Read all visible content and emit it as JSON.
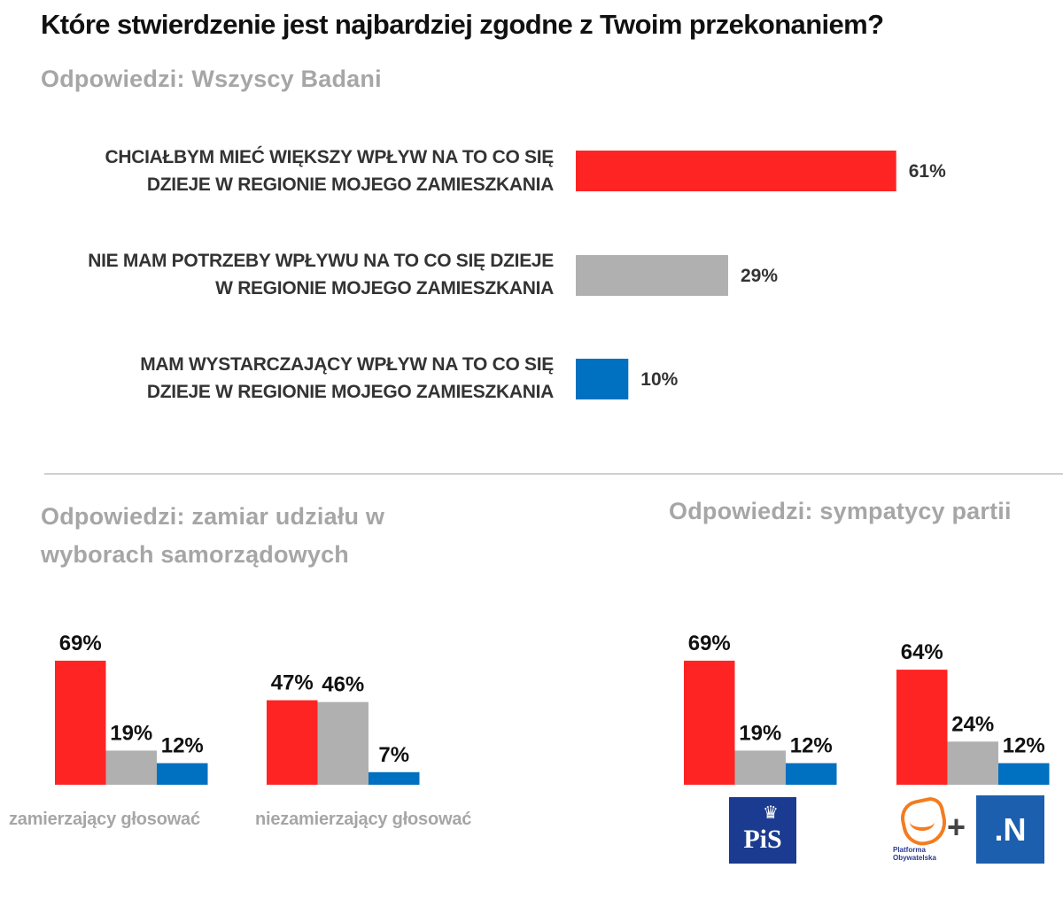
{
  "title": "Które stwierdzenie jest najbardziej zgodne z Twoim przekonaniem?",
  "subtitles": {
    "main": "Odpowiedzi: Wszyscy Badani",
    "left": "Odpowiedzi: zamiar udziału w wyborach samorządowych",
    "right": "Odpowiedzi: sympatycy partii"
  },
  "colors": {
    "red": "#ff2424",
    "grey": "#b0b0b0",
    "blue": "#0070c0"
  },
  "logos": {
    "pis": {
      "icon": "pis-party-logo",
      "text": "PiS",
      "crown": "♛"
    },
    "po": {
      "icon": "platforma-obywatelska-logo",
      "text": "Platforma Obywatelska"
    },
    "plus": "+",
    "n": {
      "icon": "nowoczesna-logo",
      "text": ".N"
    }
  },
  "chart_data": [
    {
      "type": "bar",
      "orientation": "horizontal",
      "title": "Odpowiedzi: Wszyscy Badani",
      "categories": [
        "CHCIAŁBYM MIEĆ WIĘKSZY WPŁYW NA TO CO SIĘ DZIEJE W REGIONIE MOJEGO ZAMIESZKANIA",
        "NIE MAM POTRZEBY WPŁYWU NA TO CO SIĘ DZIEJE W REGIONIE MOJEGO ZAMIESZKANIA",
        "MAM WYSTARCZAJĄCY WPŁYW NA TO CO SIĘ DZIEJE W REGIONIE MOJEGO ZAMIESZKANIA"
      ],
      "label_lines": [
        [
          "CHCIAŁBYM MIEĆ WIĘKSZY WPŁYW NA TO CO SIĘ",
          "DZIEJE W REGIONIE MOJEGO ZAMIESZKANIA"
        ],
        [
          "NIE MAM POTRZEBY WPŁYWU NA TO CO SIĘ DZIEJE",
          "W REGIONIE MOJEGO ZAMIESZKANIA"
        ],
        [
          "MAM WYSTARCZAJĄCY WPŁYW NA TO CO SIĘ",
          "DZIEJE W REGIONIE MOJEGO ZAMIESZKANIA"
        ]
      ],
      "values": [
        61,
        29,
        10
      ],
      "value_labels": [
        "61%",
        "29%",
        "10%"
      ],
      "colors": [
        "red",
        "grey",
        "blue"
      ],
      "unit": "%",
      "xlim": [
        0,
        100
      ],
      "grid": false
    },
    {
      "type": "bar",
      "orientation": "vertical",
      "title": "Odpowiedzi: zamiar udziału w wyborach samorządowych",
      "series_names": [
        "Chciałbym mieć większy wpływ",
        "Nie mam potrzeby wpływu",
        "Mam wystarczający wpływ"
      ],
      "groups": [
        {
          "label": "zamierzający głosować",
          "values": [
            69,
            19,
            12
          ],
          "value_labels": [
            "69%",
            "19%",
            "12%"
          ]
        },
        {
          "label": "niezamierzający głosować",
          "values": [
            47,
            46,
            7
          ],
          "value_labels": [
            "47%",
            "46%",
            "7%"
          ]
        }
      ],
      "colors": [
        "red",
        "grey",
        "blue"
      ],
      "unit": "%",
      "ylim": [
        0,
        100
      ],
      "grid": false
    },
    {
      "type": "bar",
      "orientation": "vertical",
      "title": "Odpowiedzi: sympatycy partii",
      "series_names": [
        "Chciałbym mieć większy wpływ",
        "Nie mam potrzeby wpływu",
        "Mam wystarczający wpływ"
      ],
      "groups": [
        {
          "label": "PiS",
          "values": [
            69,
            19,
            12
          ],
          "value_labels": [
            "69%",
            "19%",
            "12%"
          ]
        },
        {
          "label": "PO + .N",
          "values": [
            64,
            24,
            12
          ],
          "value_labels": [
            "64%",
            "24%",
            "12%"
          ]
        }
      ],
      "colors": [
        "red",
        "grey",
        "blue"
      ],
      "unit": "%",
      "ylim": [
        0,
        100
      ],
      "grid": false
    }
  ]
}
